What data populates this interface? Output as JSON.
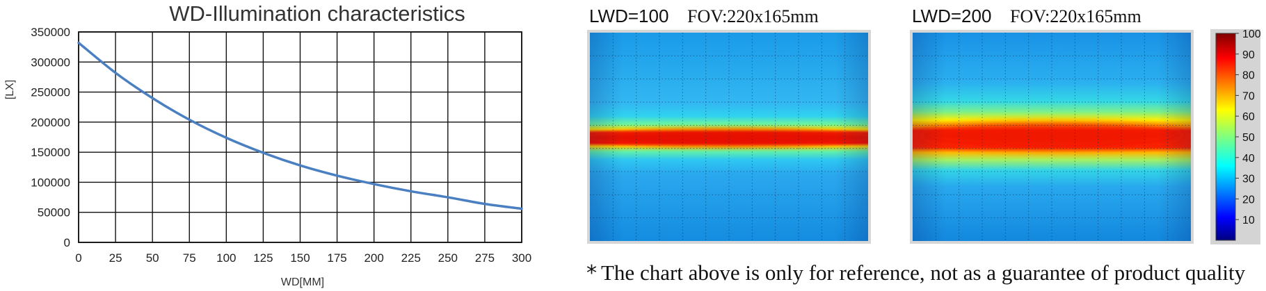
{
  "chart_data": [
    {
      "type": "line",
      "title": "WD-Illumination characteristics",
      "xlabel": "WD[MM]",
      "ylabel": "[LX]",
      "xlim": [
        0,
        300
      ],
      "ylim": [
        0,
        350000
      ],
      "xticks": [
        0,
        25,
        50,
        75,
        100,
        125,
        150,
        175,
        200,
        225,
        250,
        275,
        300
      ],
      "yticks": [
        0,
        50000,
        100000,
        150000,
        200000,
        250000,
        300000,
        350000
      ],
      "grid": true,
      "color": "#4a7fc1",
      "series": [
        {
          "x": [
            0,
            25,
            50,
            75,
            100,
            125,
            150,
            175,
            200,
            225,
            250,
            275,
            300
          ],
          "values": [
            332000,
            282000,
            240000,
            204000,
            174000,
            149000,
            128000,
            111000,
            97000,
            85000,
            75000,
            64000,
            56000
          ]
        }
      ]
    },
    {
      "type": "heatmap",
      "title_left": "LWD=100",
      "title_right": "FOV:220x165mm",
      "band_center_fraction": 0.505,
      "band_peak": 88,
      "band_height": "thin",
      "colorbar": "jet"
    },
    {
      "type": "heatmap",
      "title_left": "LWD=200",
      "title_right": "FOV:220x165mm",
      "band_center_fraction": 0.495,
      "band_peak": 85,
      "band_height": "wide",
      "colorbar": "jet"
    },
    {
      "type": "colorbar",
      "ticks": [
        10,
        20,
        30,
        40,
        50,
        60,
        70,
        80,
        90,
        100
      ],
      "range": [
        0,
        100
      ]
    }
  ],
  "footnote": {
    "symbol": "*",
    "text": "The chart above is only for reference, not as a guarantee of product quality"
  }
}
